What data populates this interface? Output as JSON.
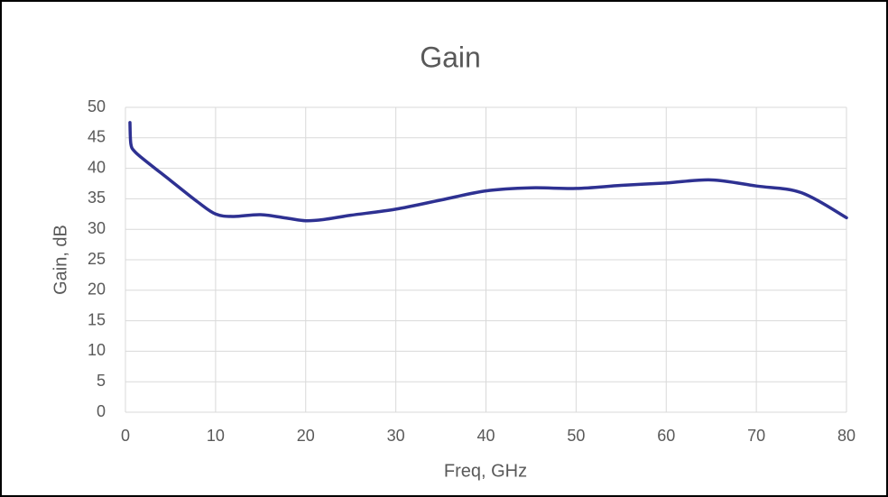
{
  "chart_data": {
    "type": "line",
    "title": "Gain",
    "x_label": "Freq, GHz",
    "y_label": "Gain, dB",
    "x": [
      0.5,
      0.6,
      1,
      2,
      5,
      8,
      10,
      12,
      15,
      18,
      20,
      22,
      25,
      30,
      35,
      40,
      45,
      50,
      55,
      60,
      65,
      70,
      75,
      80
    ],
    "series": [
      {
        "name": "Gain",
        "color": "#2e3192",
        "values": [
          47.5,
          44,
          42.8,
          41.5,
          38,
          34.5,
          32.5,
          32.1,
          32.4,
          31.8,
          31.4,
          31.6,
          32.3,
          33.3,
          34.8,
          36.3,
          36.8,
          36.7,
          37.2,
          37.6,
          38.1,
          37.1,
          36.0,
          31.9
        ]
      }
    ],
    "xlim": [
      0,
      80
    ],
    "xticks": [
      0,
      10,
      20,
      30,
      40,
      50,
      60,
      70,
      80
    ],
    "ylim": [
      0,
      50
    ],
    "yticks": [
      0,
      5,
      10,
      15,
      20,
      25,
      30,
      35,
      40,
      45,
      50
    ],
    "grid": true
  }
}
